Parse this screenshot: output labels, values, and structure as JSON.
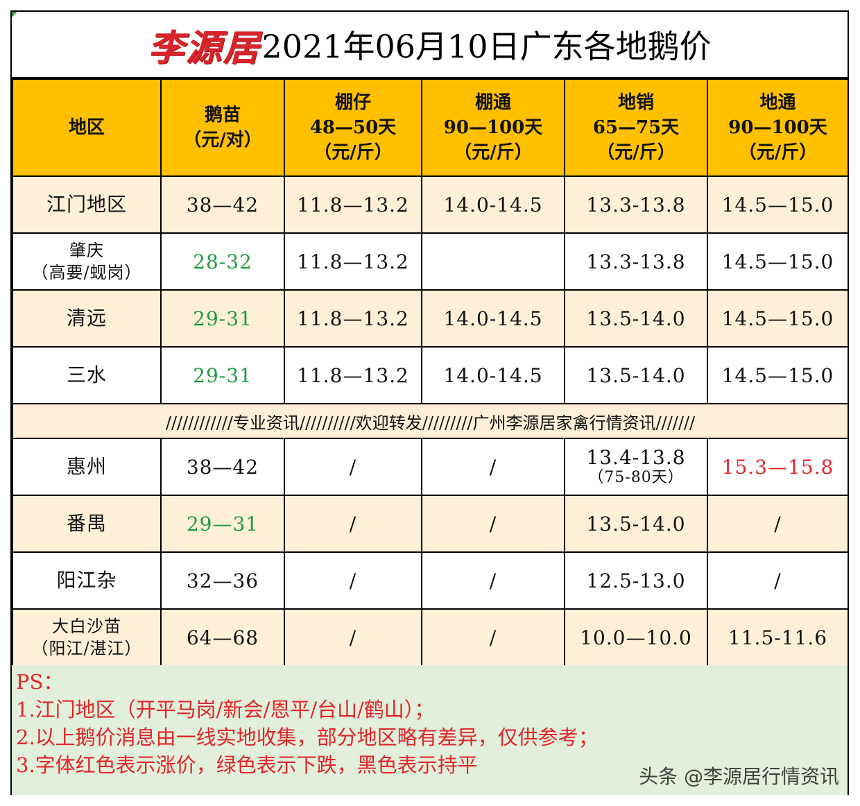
{
  "title": {
    "brand": "李源居",
    "text": "2021年06月10日广东各地鹅价"
  },
  "headers": [
    {
      "lines": [
        "地区"
      ]
    },
    {
      "lines": [
        "鹅苗",
        "（元/对）"
      ]
    },
    {
      "lines": [
        "棚仔",
        "48—50天",
        "（元/斤）"
      ]
    },
    {
      "lines": [
        "棚通",
        "90—100天",
        "（元/斤）"
      ]
    },
    {
      "lines": [
        "地销",
        "65—75天",
        "（元/斤）"
      ]
    },
    {
      "lines": [
        "地通",
        "90—100天",
        "（元/斤）"
      ]
    }
  ],
  "rows_top": [
    {
      "region": [
        "江门地区"
      ],
      "gosling": "38—42",
      "gosling_color": "black",
      "pengzai": "11.8—13.2",
      "pengtong": "14.0-14.5",
      "dixiao": "13.3-13.8",
      "ditong": "14.5—15.0"
    },
    {
      "region": [
        "肇庆",
        "（高要/蚬岗）"
      ],
      "gosling": "28-32",
      "gosling_color": "green",
      "pengzai": "11.8—13.2",
      "pengtong": "",
      "dixiao": "13.3-13.8",
      "ditong": "14.5—15.0"
    },
    {
      "region": [
        "清远"
      ],
      "gosling": "29-31",
      "gosling_color": "green",
      "pengzai": "11.8—13.2",
      "pengtong": "14.0-14.5",
      "dixiao": "13.5-14.0",
      "ditong": "14.5—15.0"
    },
    {
      "region": [
        "三水"
      ],
      "gosling": "29-31",
      "gosling_color": "green",
      "pengzai": "11.8—13.2",
      "pengtong": "14.0-14.5",
      "dixiao": "13.5-14.0",
      "ditong": "14.5—15.0"
    }
  ],
  "banner": "////////////专业资讯//////////欢迎转发/////////广州李源居家禽行情资讯///////",
  "rows_bottom": [
    {
      "region": [
        "惠州"
      ],
      "gosling": "38—42",
      "gosling_color": "black",
      "pengzai": "/",
      "pengtong": "/",
      "dixiao": "13.4-13.8",
      "dixiao_note": "（75-80天）",
      "ditong": "15.3—15.8",
      "ditong_color": "red"
    },
    {
      "region": [
        "番禺"
      ],
      "gosling": "29—31",
      "gosling_color": "green",
      "pengzai": "/",
      "pengtong": "/",
      "dixiao": "13.5-14.0",
      "ditong": "/"
    },
    {
      "region": [
        "阳江杂"
      ],
      "gosling": "32—36",
      "gosling_color": "black",
      "pengzai": "/",
      "pengtong": "/",
      "dixiao": "12.5-13.0",
      "ditong": "/"
    },
    {
      "region": [
        "大白沙苗",
        "（阳江/湛江）"
      ],
      "gosling": "64—68",
      "gosling_color": "black",
      "pengzai": "/",
      "pengtong": "/",
      "dixiao": "10.0—10.0",
      "ditong": "11.5-11.6"
    }
  ],
  "notes": [
    "PS：",
    "1.江门地区（开平马岗/新会/恩平/台山/鹤山）；",
    "2.以上鹅价消息由一线实地收集，部分地区略有差异，仅供参考；",
    "3.字体红色表示涨价，绿色表示下跌，黑色表示持平"
  ],
  "watermark": "头条 @李源居行情资讯",
  "colors": {
    "header_bg": "#ffc000",
    "row_cream": "#fdf0d7",
    "notes_bg": "#e2efda",
    "up_red": "#e0252a",
    "down_green": "#1e9a42",
    "brand_red": "#d9252a"
  }
}
